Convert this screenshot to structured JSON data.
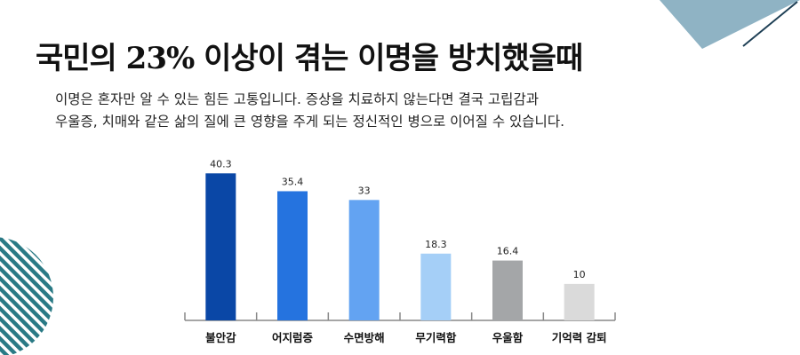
{
  "header": {
    "title": "국민의 23% 이상이 겪는 이명을 방치했을때",
    "desc_line1": "이명은 혼자만 알 수 있는 힘든 고통입니다. 증상을 치료하지 않는다면 결국 고립감과",
    "desc_line2": "우울증, 치매와 같은 삶의 질에 큰 영향을 주게 되는 정신적인 병으로 이어질 수 있습니다."
  },
  "colors": {
    "triangle": "#8fb3c4",
    "accent_line": "#1e3f55",
    "stripes": "#2a7a85",
    "axis": "#888888"
  },
  "chart_data": {
    "type": "bar",
    "categories": [
      "불안감",
      "어지럼증",
      "수면방해",
      "무기력함",
      "우울함",
      "기억력 감퇴"
    ],
    "values": [
      40.3,
      35.4,
      33,
      18.3,
      16.4,
      10
    ],
    "bar_colors": [
      "#0a47a6",
      "#2573df",
      "#63a3f2",
      "#a5cff7",
      "#a4a6a8",
      "#dadada"
    ],
    "ylim": [
      0,
      45
    ],
    "show_data_labels": true,
    "grid": false,
    "title": "",
    "xlabel": "",
    "ylabel": ""
  }
}
